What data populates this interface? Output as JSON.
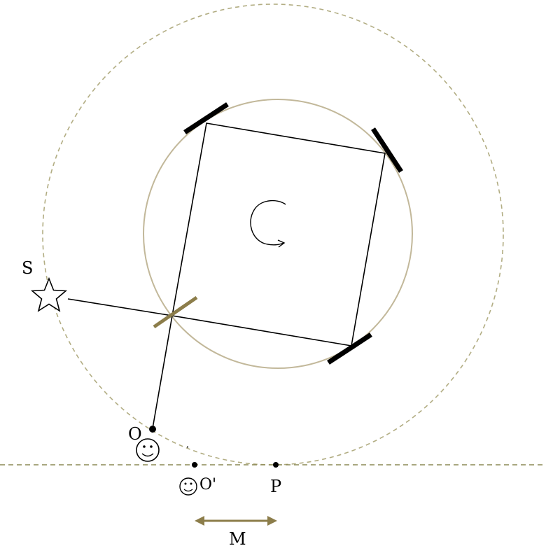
{
  "labels": {
    "source": "S",
    "observer": "O",
    "observer_moved": "O'",
    "point": "P",
    "motion": "M"
  },
  "colors": {
    "circle": "#c2b89a",
    "dashed": "#b2ad83",
    "tan_mirror": "#8c7d4a",
    "arrow": "#8c7d4a",
    "ink": "#000000"
  },
  "icons": {
    "source": "star-icon",
    "observer": "smiley-icon",
    "observer_moved": "smiley-icon",
    "rotation": "rotation-arrow-icon"
  }
}
